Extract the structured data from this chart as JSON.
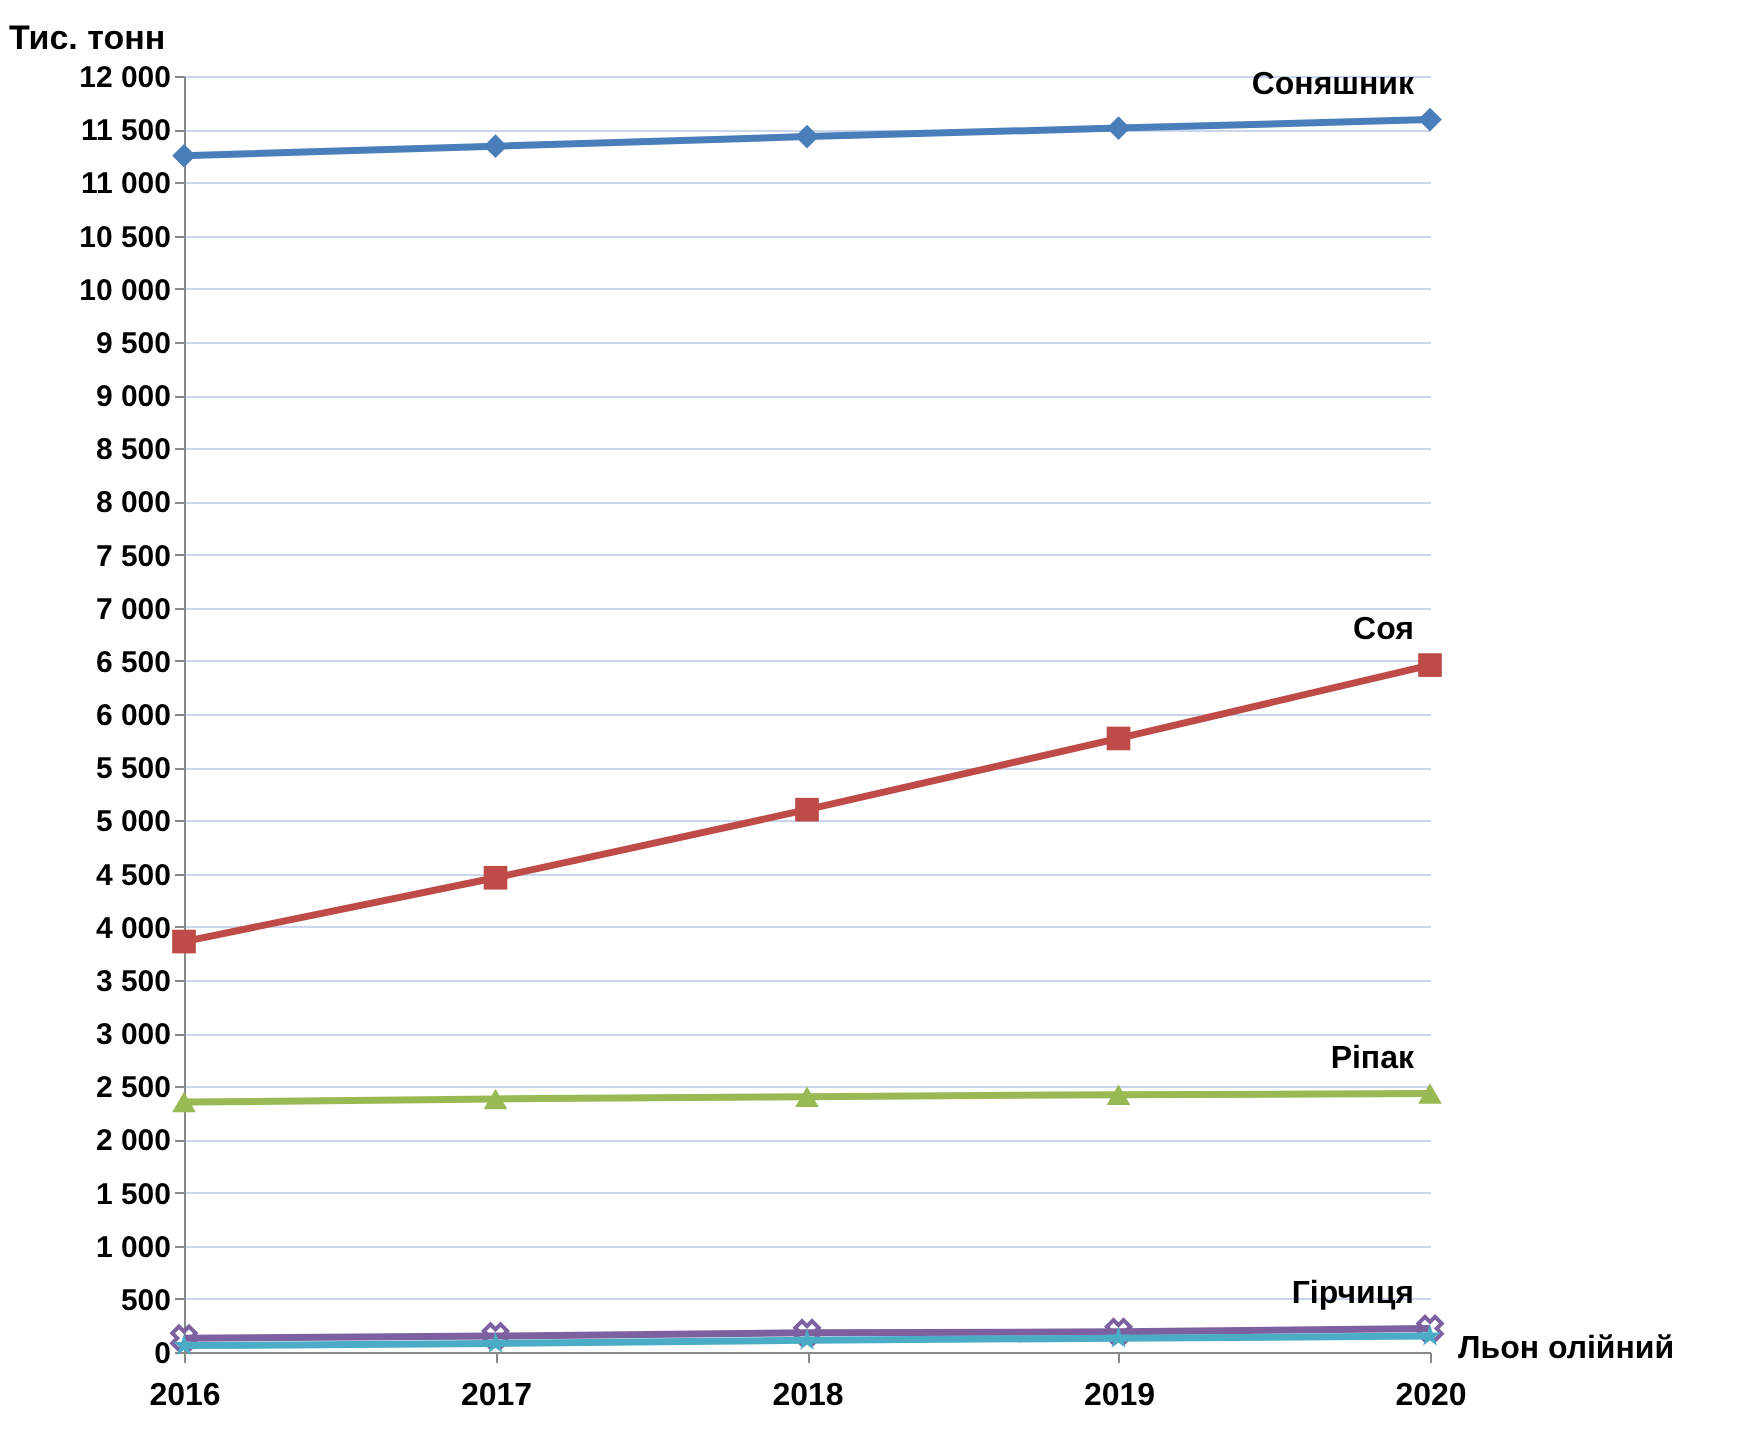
{
  "chart_data": {
    "type": "line",
    "ylabel": "Тис. тонн",
    "categories": [
      "2016",
      "2017",
      "2018",
      "2019",
      "2020"
    ],
    "series": [
      {
        "name": "Соняшник",
        "color": "#4a7ebb",
        "marker": "diamond",
        "values": [
          11250,
          11340,
          11430,
          11510,
          11590
        ]
      },
      {
        "name": "Соя",
        "color": "#be4b48",
        "marker": "square",
        "values": [
          3860,
          4460,
          5100,
          5770,
          6460
        ]
      },
      {
        "name": "Ріпак",
        "color": "#98b954",
        "marker": "triangle",
        "values": [
          2350,
          2380,
          2400,
          2420,
          2430
        ]
      },
      {
        "name": "Гірчиця",
        "color": "#7d60a0",
        "marker": "cross",
        "values": [
          130,
          150,
          180,
          190,
          220
        ]
      },
      {
        "name": "Льон олійний",
        "color": "#4bacc6",
        "marker": "star",
        "values": [
          60,
          80,
          110,
          130,
          150
        ]
      }
    ],
    "ylim": [
      0,
      12000
    ],
    "yticks": [
      0,
      500,
      {
        "value": 1000,
        "label": "1 000"
      },
      {
        "value": 1500,
        "label": "1 500"
      },
      {
        "value": 2000,
        "label": "2 000"
      },
      {
        "value": 2500,
        "label": "2 500"
      },
      {
        "value": 3000,
        "label": "3 000"
      },
      {
        "value": 3500,
        "label": "3 500"
      },
      {
        "value": 4000,
        "label": "4 000"
      },
      {
        "value": 4500,
        "label": "4 500"
      },
      {
        "value": 5000,
        "label": "5 000"
      },
      {
        "value": 5500,
        "label": "5 500"
      },
      {
        "value": 6000,
        "label": "6 000"
      },
      {
        "value": 6500,
        "label": "6 500"
      },
      {
        "value": 7000,
        "label": "7 000"
      },
      {
        "value": 7500,
        "label": "7 500"
      },
      {
        "value": 8000,
        "label": "8 000"
      },
      {
        "value": 8500,
        "label": "8 500"
      },
      {
        "value": 9000,
        "label": "9 000"
      },
      {
        "value": 9500,
        "label": "9 500"
      },
      {
        "value": 10000,
        "label": "10 000"
      },
      {
        "value": 10500,
        "label": "10 500"
      },
      {
        "value": 11000,
        "label": "11 000"
      },
      {
        "value": 11500,
        "label": "11 500"
      },
      {
        "value": 12000,
        "label": "12 000"
      }
    ],
    "grid": "y",
    "legend": false
  }
}
